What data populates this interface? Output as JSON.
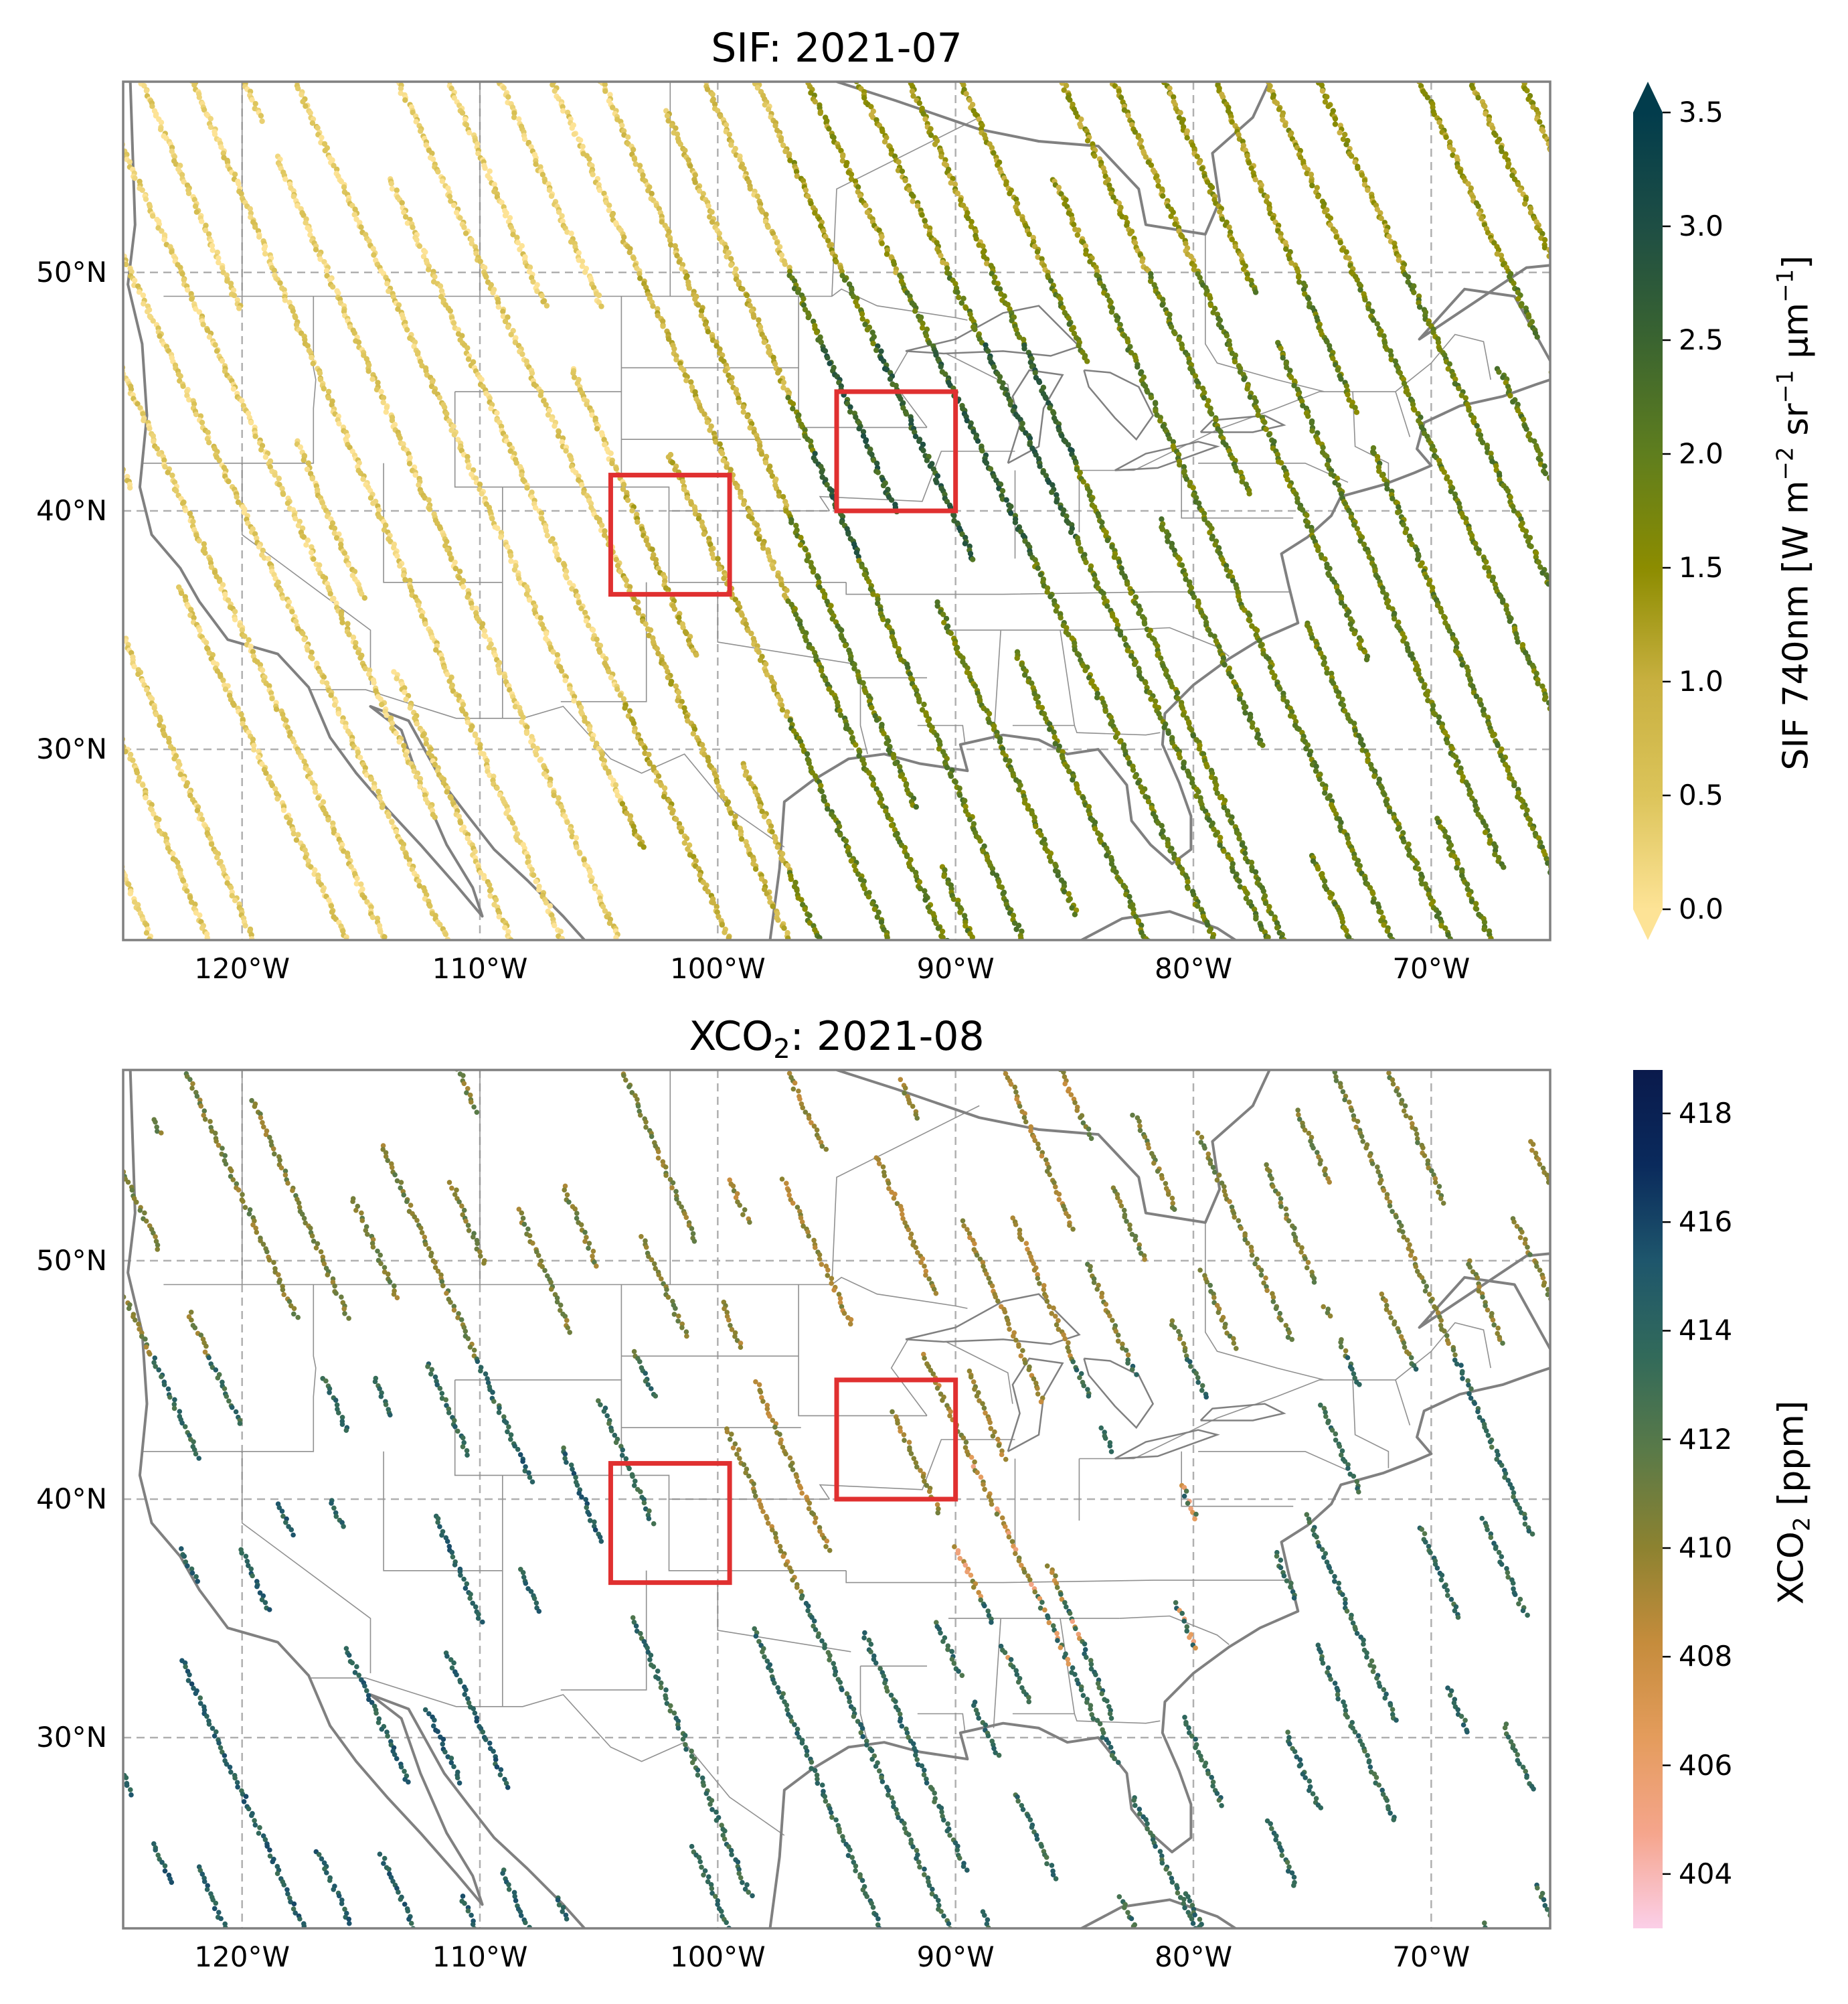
{
  "chart_data": [
    {
      "type": "map-scatter",
      "title": "SIF: 2021-07",
      "lon_range": [
        -125,
        -65
      ],
      "lat_range": [
        22,
        58
      ],
      "x_ticks": [
        {
          "lon": -120,
          "label": "120°W"
        },
        {
          "lon": -110,
          "label": "110°W"
        },
        {
          "lon": -100,
          "label": "100°W"
        },
        {
          "lon": -90,
          "label": "90°W"
        },
        {
          "lon": -80,
          "label": "80°W"
        },
        {
          "lon": -70,
          "label": "70°W"
        }
      ],
      "y_ticks": [
        {
          "lat": 30,
          "label": "30°N"
        },
        {
          "lat": 40,
          "label": "40°N"
        },
        {
          "lat": 50,
          "label": "50°N"
        }
      ],
      "regions": [
        {
          "lon": [
            -104.5,
            -99.5
          ],
          "lat": [
            36.5,
            41.5
          ],
          "color": "#e03030"
        },
        {
          "lon": [
            -95,
            -90
          ],
          "lat": [
            40,
            45
          ],
          "color": "#e03030"
        }
      ],
      "colorbar": {
        "label_main": "SIF 740nm [W m",
        "label_exp1": "−2",
        "label_mid": " sr",
        "label_exp2": "−1",
        "label_mu": " μm",
        "label_exp3": "−1",
        "label_end": "]",
        "min": 0.0,
        "max": 3.5,
        "extend": "both",
        "ticks": [
          {
            "value": 0.0,
            "label": "0.0"
          },
          {
            "value": 0.5,
            "label": "0.5"
          },
          {
            "value": 1.0,
            "label": "1.0"
          },
          {
            "value": 1.5,
            "label": "1.5"
          },
          {
            "value": 2.0,
            "label": "2.0"
          },
          {
            "value": 2.5,
            "label": "2.5"
          },
          {
            "value": 3.0,
            "label": "3.0"
          },
          {
            "value": 3.5,
            "label": "3.5"
          }
        ],
        "colors": [
          "#fde396",
          "#dcc45a",
          "#c8b040",
          "#8c8c00",
          "#5f7e1e",
          "#3a6430",
          "#1e4e44",
          "#023c4c"
        ]
      },
      "swath_seed": 11
    },
    {
      "type": "map-scatter",
      "title_main": "XCO",
      "title_sub": "2",
      "title_rest": ": 2021-08",
      "lon_range": [
        -125,
        -65
      ],
      "lat_range": [
        22,
        58
      ],
      "x_ticks": [
        {
          "lon": -120,
          "label": "120°W"
        },
        {
          "lon": -110,
          "label": "110°W"
        },
        {
          "lon": -100,
          "label": "100°W"
        },
        {
          "lon": -90,
          "label": "90°W"
        },
        {
          "lon": -80,
          "label": "80°W"
        },
        {
          "lon": -70,
          "label": "70°W"
        }
      ],
      "y_ticks": [
        {
          "lat": 30,
          "label": "30°N"
        },
        {
          "lat": 40,
          "label": "40°N"
        },
        {
          "lat": 50,
          "label": "50°N"
        }
      ],
      "regions": [
        {
          "lon": [
            -104.5,
            -99.5
          ],
          "lat": [
            36.5,
            41.5
          ],
          "color": "#e03030"
        },
        {
          "lon": [
            -95,
            -90
          ],
          "lat": [
            40,
            45
          ],
          "color": "#e03030"
        }
      ],
      "colorbar": {
        "label_main": "XCO",
        "label_sub": "2",
        "label_rest": " [ppm]",
        "min": 403,
        "max": 418.8,
        "extend": "neither",
        "ticks": [
          {
            "value": 404,
            "label": "404"
          },
          {
            "value": 406,
            "label": "406"
          },
          {
            "value": 408,
            "label": "408"
          },
          {
            "value": 410,
            "label": "410"
          },
          {
            "value": 412,
            "label": "412"
          },
          {
            "value": 414,
            "label": "414"
          },
          {
            "value": 416,
            "label": "416"
          },
          {
            "value": 418,
            "label": "418"
          }
        ],
        "colors": [
          "#fbcfe8",
          "#f5a58c",
          "#e49c5c",
          "#c58c3c",
          "#8c8230",
          "#5a7a48",
          "#326a5a",
          "#1e566c",
          "#0a2a5c",
          "#0a1a4c"
        ]
      },
      "swath_seed": 29
    }
  ]
}
